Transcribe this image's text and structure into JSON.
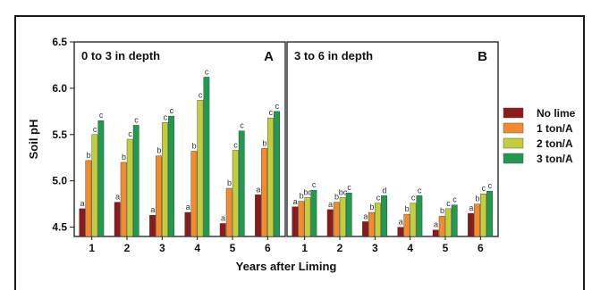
{
  "chart_data": {
    "type": "bar",
    "ylabel": "Soil pH",
    "xlabel": "Years after Liming",
    "ylim": [
      4.4,
      6.5
    ],
    "yticks": [
      "4.5",
      "5.0",
      "5.5",
      "6.0",
      "6.5"
    ],
    "categories": [
      "1",
      "2",
      "3",
      "4",
      "5",
      "6"
    ],
    "legend_position": "right",
    "series": [
      {
        "name": "No lime",
        "color": "#8b1a1a"
      },
      {
        "name": "1 ton/A",
        "color": "#f28a2e"
      },
      {
        "name": "2 ton/A",
        "color": "#c3cf3a"
      },
      {
        "name": "3 ton/A",
        "color": "#1f9a4f"
      }
    ],
    "panels": [
      {
        "title": "0 to 3 in depth",
        "letter": "A",
        "values": [
          [
            4.7,
            5.22,
            5.5,
            5.65
          ],
          [
            4.77,
            5.2,
            5.45,
            5.6
          ],
          [
            4.63,
            5.27,
            5.63,
            5.7
          ],
          [
            4.66,
            5.32,
            5.87,
            6.12
          ],
          [
            4.54,
            4.92,
            5.33,
            5.54
          ],
          [
            4.85,
            5.35,
            5.68,
            5.75
          ]
        ],
        "labels": [
          [
            "a",
            "b",
            "c",
            "c"
          ],
          [
            "a",
            "b",
            "c",
            "c"
          ],
          [
            "a",
            "b",
            "c",
            "c"
          ],
          [
            "a",
            "b",
            "c",
            "c"
          ],
          [
            "a",
            "b",
            "c",
            "c"
          ],
          [
            "a",
            "b",
            "c",
            "c"
          ]
        ]
      },
      {
        "title": "3 to 6 in depth",
        "letter": "B",
        "values": [
          [
            4.72,
            4.78,
            4.82,
            4.9
          ],
          [
            4.69,
            4.77,
            4.82,
            4.87
          ],
          [
            4.56,
            4.66,
            4.76,
            4.84
          ],
          [
            4.5,
            4.64,
            4.76,
            4.84
          ],
          [
            4.47,
            4.62,
            4.7,
            4.74
          ],
          [
            4.65,
            4.75,
            4.86,
            4.89
          ]
        ],
        "labels": [
          [
            "a",
            "b",
            "bc",
            "c"
          ],
          [
            "a",
            "b",
            "bc",
            "c"
          ],
          [
            "a",
            "b",
            "c",
            "d"
          ],
          [
            "a",
            "b",
            "c",
            "c"
          ],
          [
            "a",
            "b",
            "c",
            "c"
          ],
          [
            "a",
            "b",
            "c",
            "c"
          ]
        ]
      }
    ]
  }
}
